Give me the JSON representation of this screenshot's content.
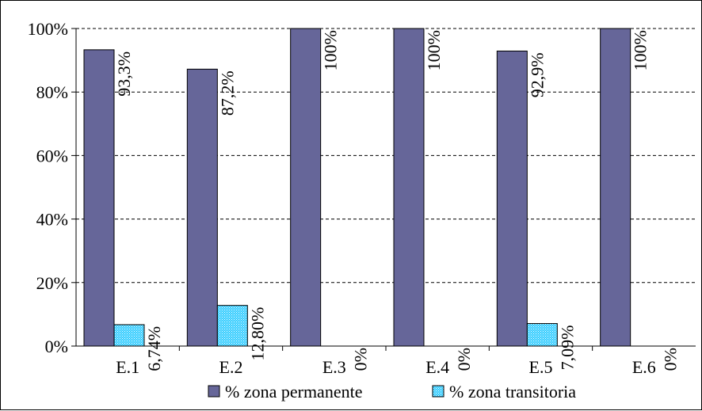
{
  "chart_data": {
    "type": "bar",
    "categories": [
      "E.1",
      "E.2",
      "E.3",
      "E.4",
      "E.5",
      "E.6"
    ],
    "series": [
      {
        "name": "% zona permanente",
        "values": [
          93.3,
          87.2,
          100,
          100,
          92.9,
          100
        ],
        "labels": [
          "93,3%",
          "87,2%",
          "100%",
          "100%",
          "92,9%",
          "100%"
        ],
        "color": "#666699"
      },
      {
        "name": "% zona transitoria",
        "values": [
          6.74,
          12.8,
          0,
          0,
          7.09,
          0
        ],
        "labels": [
          "6,74%",
          "12,80%",
          "0%",
          "0%",
          "7,09%",
          "0%"
        ],
        "color": "#33CCFF"
      }
    ],
    "yticks": [
      "0%",
      "20%",
      "40%",
      "60%",
      "80%",
      "100%"
    ],
    "ylim": [
      0,
      100
    ],
    "grid": true,
    "legend": "bottom"
  }
}
